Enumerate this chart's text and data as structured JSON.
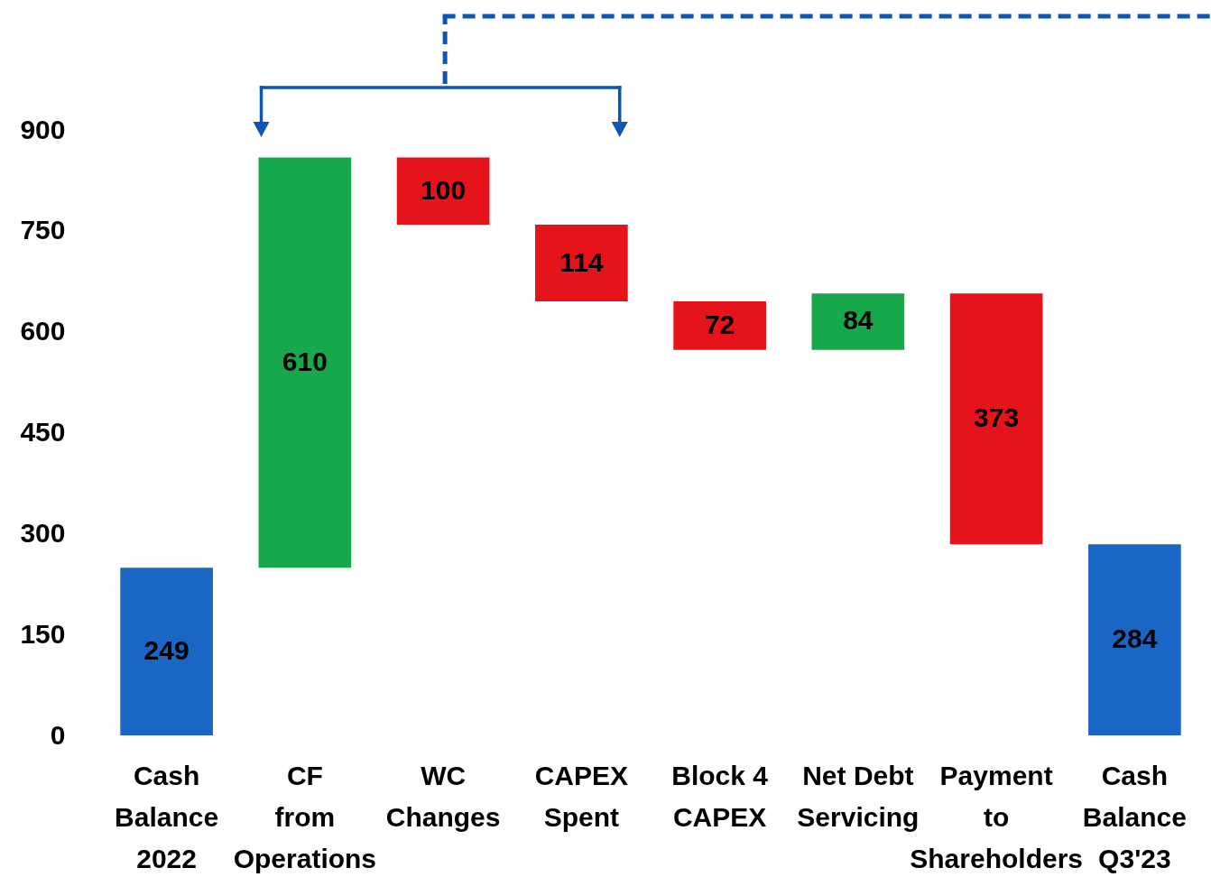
{
  "chart_data": {
    "type": "bar",
    "categories": [
      "Cash\nBalance\n2022",
      "CF\nfrom\nOperations",
      "WC\nChanges",
      "CAPEX\nSpent",
      "Block 4\nCAPEX",
      "Net Debt\nServicing",
      "Payment\nto\nShareholders",
      "Cash\nBalance\nQ3'23"
    ],
    "values": [
      249,
      610,
      100,
      114,
      72,
      84,
      373,
      284
    ],
    "base": [
      0,
      249,
      759,
      645,
      573,
      573,
      284,
      0
    ],
    "colors": [
      "#1a66c4",
      "#16a84a",
      "#e5141a",
      "#e5141a",
      "#e5141a",
      "#16a84a",
      "#e5141a",
      "#1a66c4"
    ],
    "ylim": [
      0,
      900
    ],
    "yticks": [
      0,
      150,
      300,
      450,
      600,
      750,
      900
    ],
    "data_labels": true
  }
}
